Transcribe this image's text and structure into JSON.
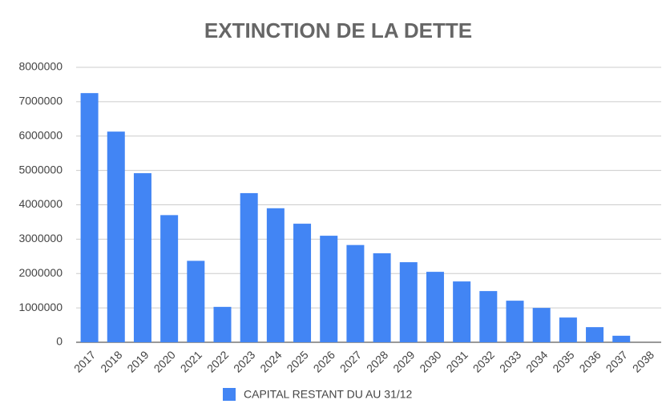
{
  "chart_data": {
    "type": "bar",
    "title": "EXTINCTION DE LA DETTE",
    "categories": [
      "2017",
      "2018",
      "2019",
      "2020",
      "2021",
      "2022",
      "2023",
      "2024",
      "2025",
      "2026",
      "2027",
      "2028",
      "2029",
      "2030",
      "2031",
      "2032",
      "2033",
      "2034",
      "2035",
      "2036",
      "2037",
      "2038"
    ],
    "series": [
      {
        "name": "CAPITAL RESTANT DU AU 31/12",
        "color": "#4285f4",
        "values": [
          7250000,
          6130000,
          4920000,
          3700000,
          2370000,
          1030000,
          4340000,
          3900000,
          3450000,
          3100000,
          2830000,
          2590000,
          2330000,
          2050000,
          1770000,
          1490000,
          1210000,
          1000000,
          720000,
          440000,
          190000,
          0
        ]
      }
    ],
    "ylim": [
      0,
      8000000
    ],
    "yticks": [
      0,
      1000000,
      2000000,
      3000000,
      4000000,
      5000000,
      6000000,
      7000000,
      8000000
    ],
    "grid": true,
    "legend": "bottom"
  }
}
